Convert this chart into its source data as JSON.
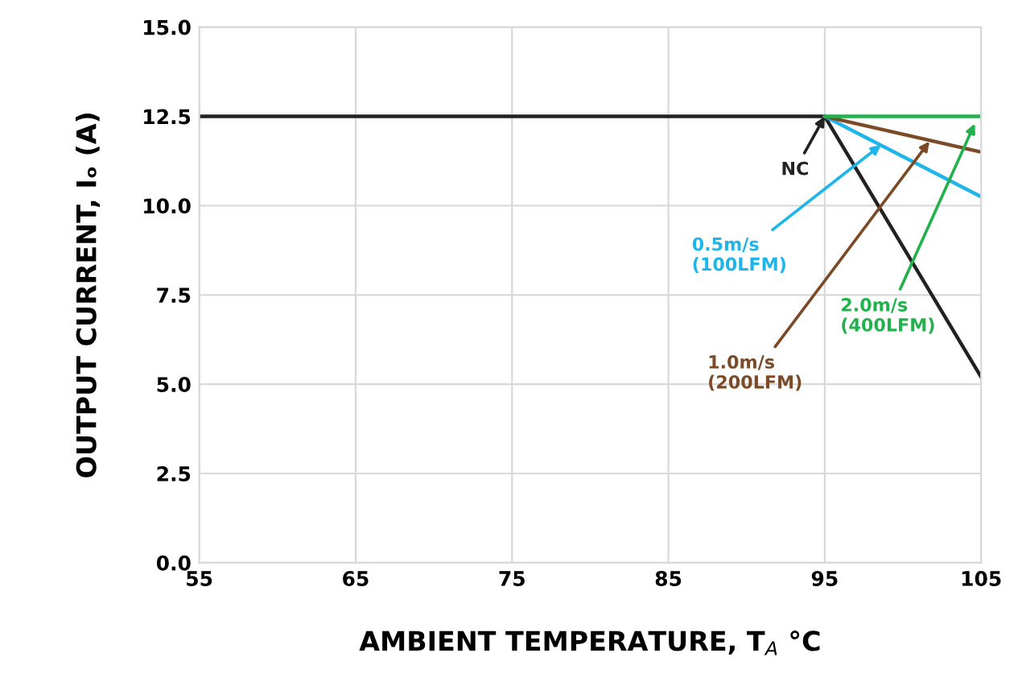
{
  "chart_data": {
    "type": "line",
    "xlabel": "AMBIENT TEMPERATURE, T$_{A}$ °C",
    "ylabel": "OUTPUT CURRENT, Iₒ (A)",
    "series": [
      {
        "color": "#222222",
        "x": [
          55,
          95,
          105
        ],
        "values": [
          12.5,
          12.5,
          5.2
        ]
      },
      {
        "color": "#1fb5e8",
        "x": [
          95,
          105
        ],
        "values": [
          12.5,
          10.25
        ]
      },
      {
        "color": "#7b4a26",
        "x": [
          95,
          105
        ],
        "values": [
          12.5,
          11.5
        ]
      },
      {
        "color": "#22b14c",
        "x": [
          95,
          105
        ],
        "values": [
          12.5,
          12.5
        ]
      }
    ],
    "annotations": [
      {
        "text": "NC",
        "x": 95,
        "y": 12.5
      },
      {
        "text": "0.5m/s\n(100LFM)",
        "x": 98.6,
        "y": 11.7
      },
      {
        "text": "1.0m/s\n(200LFM)",
        "x": 101.7,
        "y": 11.8
      },
      {
        "text": "2.0m/s\n(400LFM)",
        "x": 104.6,
        "y": 12.3
      }
    ],
    "xlim": [
      55,
      105
    ],
    "xticks": [
      55,
      65,
      75,
      85,
      95,
      105
    ],
    "ylim": [
      0,
      15
    ],
    "yticks": [
      {
        "value": 0,
        "label": "0.0"
      },
      {
        "value": 2.5,
        "label": "2.5"
      },
      {
        "value": 5,
        "label": "5.0"
      },
      {
        "value": 7.5,
        "label": "7.5"
      },
      {
        "value": 10,
        "label": "10.0"
      },
      {
        "value": 12.5,
        "label": "12.5"
      },
      {
        "value": 15,
        "label": "15.0"
      }
    ],
    "grid": true,
    "marker": "none",
    "line_style": "solid",
    "legend": false
  }
}
